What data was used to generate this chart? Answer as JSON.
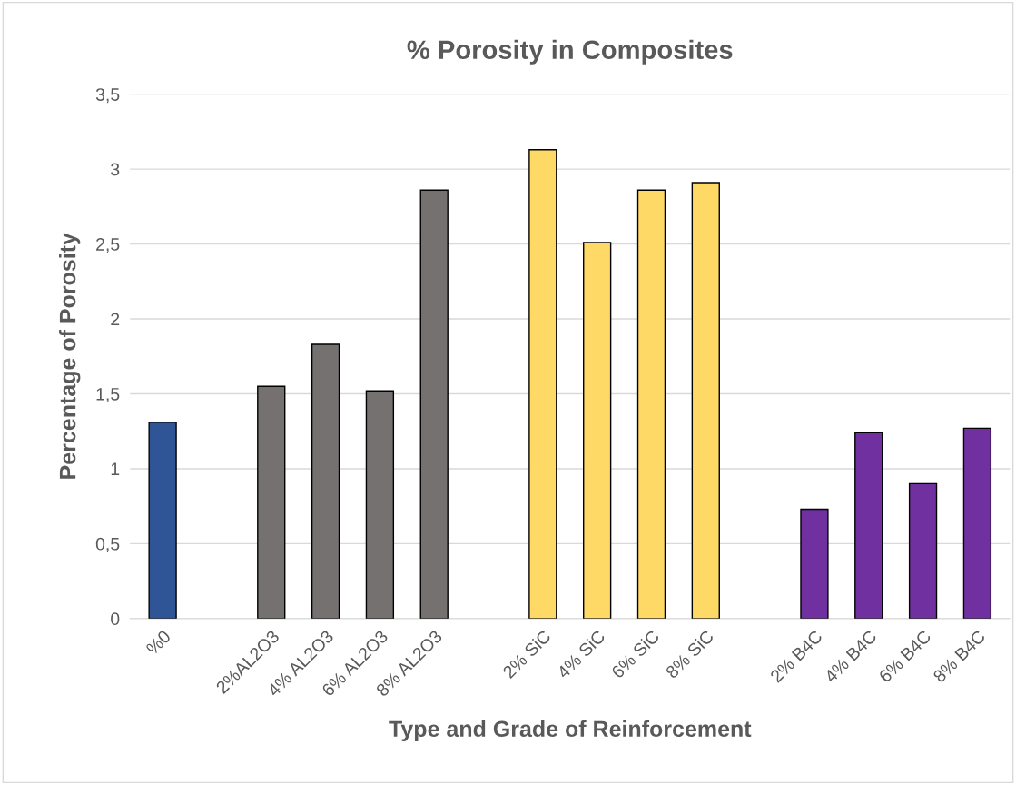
{
  "chart_data": {
    "type": "bar",
    "title": "% Porosity in Composites",
    "xlabel": "Type and Grade of Reinforcement",
    "ylabel": "Percentage of Porosity",
    "categories": [
      "%0",
      null,
      "2%AL2O3",
      "4% AL2O3",
      "6% AL2O3",
      "8% AL2O3",
      null,
      "2% SiC",
      "4% SiC",
      "6% SiC",
      "8% SiC",
      null,
      "2% B4C",
      "4% B4C",
      "6% B4C",
      "8% B4C"
    ],
    "values": [
      1.31,
      null,
      1.55,
      1.83,
      1.52,
      2.86,
      null,
      3.13,
      2.51,
      2.86,
      2.91,
      null,
      0.73,
      1.24,
      0.9,
      1.27
    ],
    "colors": [
      "#2f5597",
      null,
      "#767171",
      "#767171",
      "#767171",
      "#767171",
      null,
      "#ffd966",
      "#ffd966",
      "#ffd966",
      "#ffd966",
      null,
      "#7030a0",
      "#7030a0",
      "#7030a0",
      "#7030a0"
    ],
    "ylim": [
      0,
      3.5
    ],
    "yticks": [
      0,
      {
        "value": 0.5,
        "label": "0,5"
      },
      1,
      {
        "value": 1.5,
        "label": "1,5"
      },
      2,
      {
        "value": 2.5,
        "label": "2,5"
      },
      3,
      {
        "value": 3.5,
        "label": "3,5"
      }
    ],
    "grid": "y"
  }
}
